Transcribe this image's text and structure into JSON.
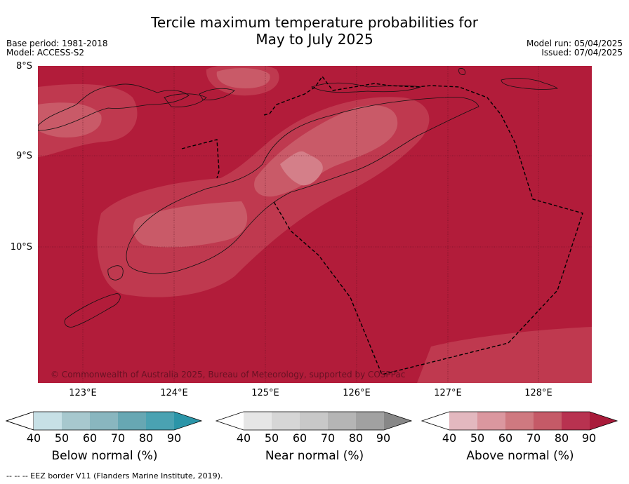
{
  "header": {
    "title_line1": "Tercile maximum temperature probabilities for",
    "title_line2": "May to July 2025",
    "base_period": "Base period: 1981-2018",
    "model": "Model: ACCESS-S2",
    "model_run": "Model run: 05/04/2025",
    "issued": "Issued: 07/04/2025"
  },
  "map": {
    "lat_labels": [
      "8°S",
      "9°S",
      "10°S"
    ],
    "lon_labels": [
      "123°E",
      "124°E",
      "125°E",
      "126°E",
      "127°E",
      "128°E"
    ],
    "copyright": "© Commonwealth of Australia 2025, Bureau of Meteorology, supported by COSPPac",
    "colors": {
      "above_90": "#b21c3a",
      "above_80": "#bf394f",
      "above_70": "#c95a68",
      "above_60": "#d47f89"
    }
  },
  "legends": [
    {
      "title": "Below normal (%)",
      "ticks": [
        "40",
        "50",
        "60",
        "70",
        "80",
        "90"
      ],
      "colors": [
        "#ffffff",
        "#c7e0e6",
        "#a7c8ce",
        "#89b6bf",
        "#67a7b3",
        "#4aa2b2",
        "#2b95a8"
      ]
    },
    {
      "title": "Near normal (%)",
      "ticks": [
        "40",
        "50",
        "60",
        "70",
        "80",
        "90"
      ],
      "colors": [
        "#ffffff",
        "#e6e6e6",
        "#d6d6d6",
        "#c8c8c8",
        "#b5b5b5",
        "#a1a1a1",
        "#878787"
      ]
    },
    {
      "title": "Above normal (%)",
      "ticks": [
        "40",
        "50",
        "60",
        "70",
        "80",
        "90"
      ],
      "colors": [
        "#ffffff",
        "#e3b8bf",
        "#db979f",
        "#cf7980",
        "#c55a67",
        "#b83250",
        "#a91b3a"
      ]
    }
  ],
  "footnote": "--  --  -- EEZ border V11 (Flanders Marine Institute, 2019)."
}
